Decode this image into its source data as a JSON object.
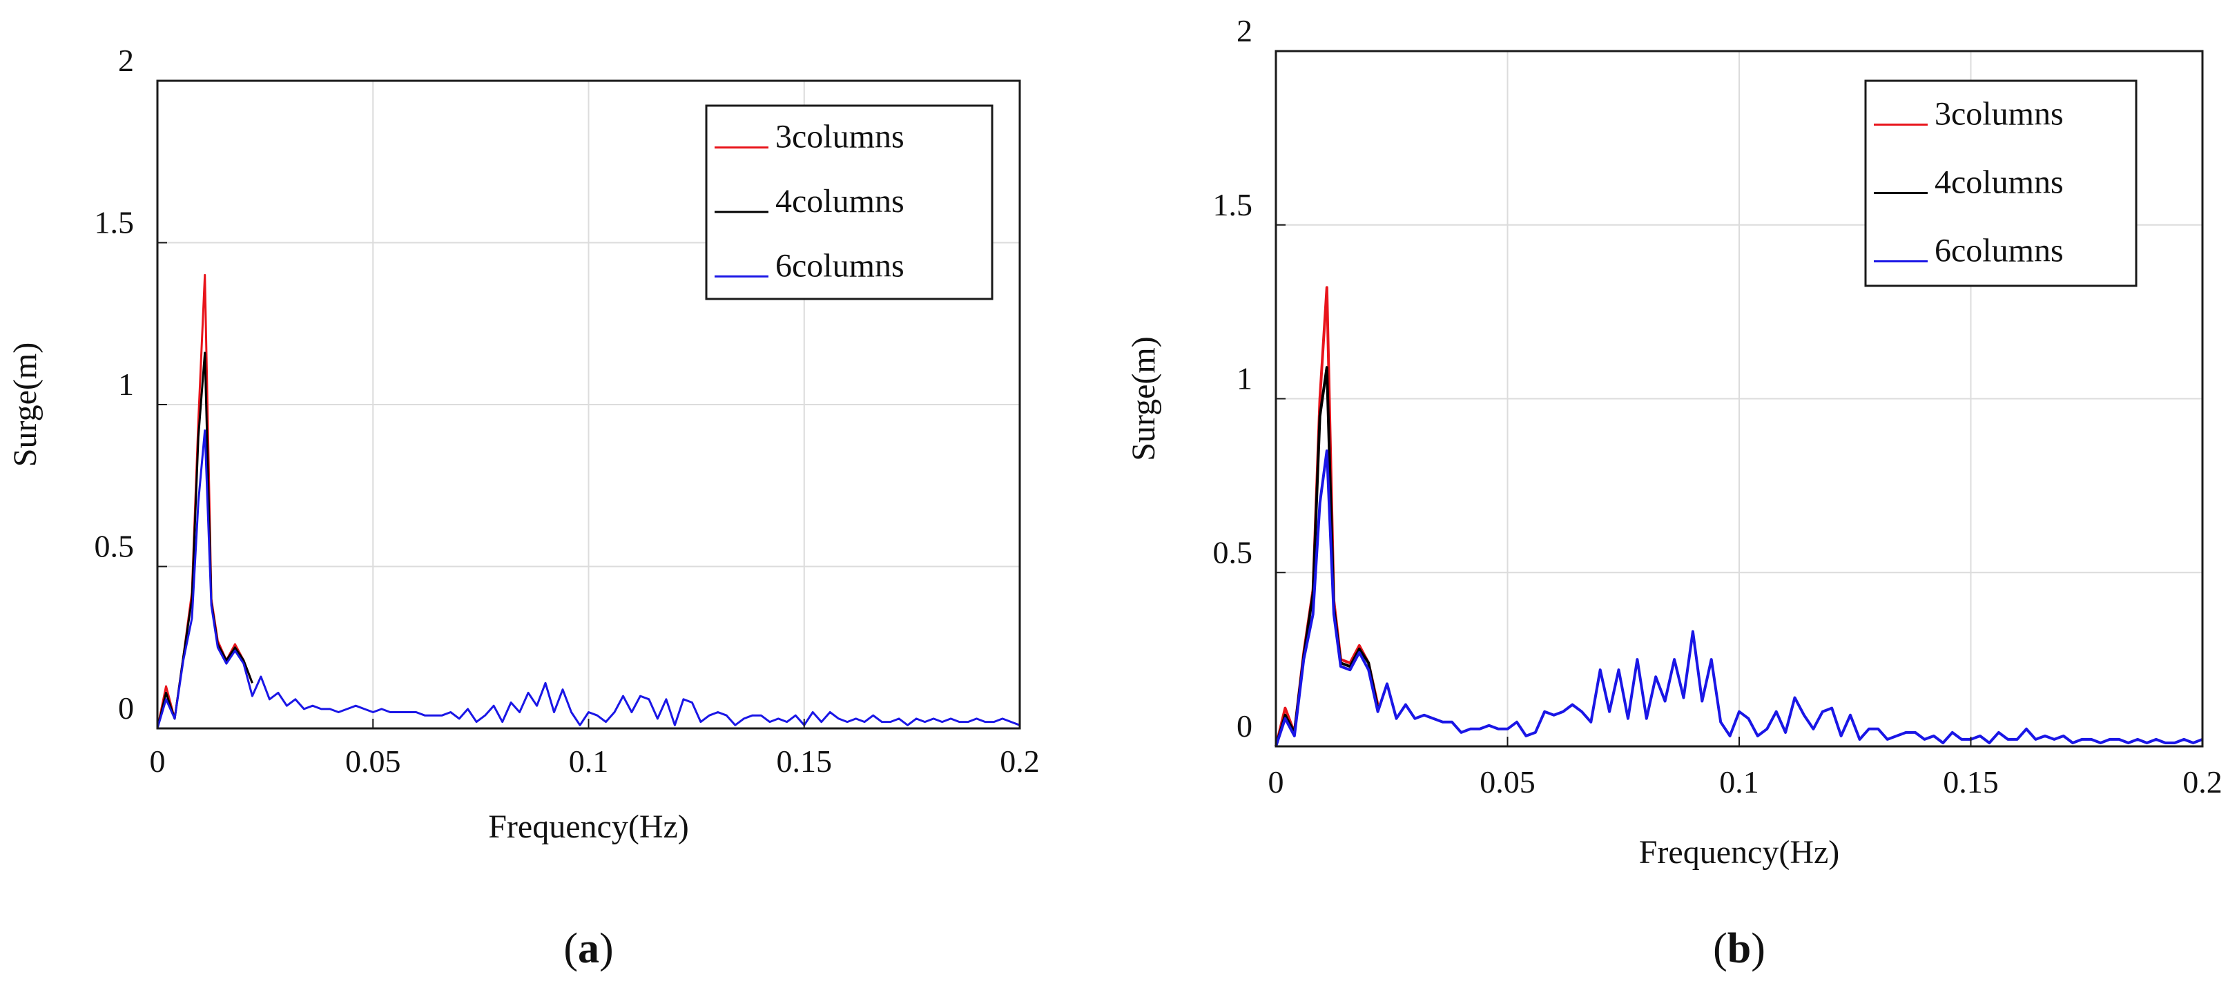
{
  "chart_data": [
    {
      "type": "line",
      "panel_label_open": "(",
      "panel_label_letter": "a",
      "panel_label_close": ")",
      "xlabel": "Frequency(Hz)",
      "ylabel": "Surge(m)",
      "xlim": [
        0,
        0.2
      ],
      "ylim": [
        0,
        2
      ],
      "xticks": [
        0,
        0.05,
        0.1,
        0.15,
        0.2
      ],
      "yticks": [
        0,
        0.5,
        1,
        1.5,
        2
      ],
      "grid": true,
      "legend_position": "top-right",
      "series": [
        {
          "name": "3columns",
          "color": "#e8141b",
          "x": [
            0,
            0.002,
            0.004,
            0.006,
            0.008,
            0.0095,
            0.011,
            0.0125,
            0.014,
            0.016,
            0.018,
            0.02,
            0.022
          ],
          "y": [
            0,
            0.13,
            0.03,
            0.22,
            0.42,
            0.95,
            1.4,
            0.4,
            0.27,
            0.21,
            0.26,
            0.21,
            0.14
          ]
        },
        {
          "name": "4columns",
          "color": "#000000",
          "x": [
            0,
            0.002,
            0.004,
            0.006,
            0.008,
            0.0095,
            0.011,
            0.0125,
            0.014,
            0.016,
            0.018,
            0.02,
            0.022
          ],
          "y": [
            0,
            0.11,
            0.03,
            0.22,
            0.4,
            0.9,
            1.16,
            0.39,
            0.26,
            0.21,
            0.25,
            0.21,
            0.14
          ]
        },
        {
          "name": "6columns",
          "color": "#1a16e6",
          "x": [
            0,
            0.002,
            0.004,
            0.006,
            0.008,
            0.0095,
            0.011,
            0.0125,
            0.014,
            0.016,
            0.018,
            0.02,
            0.022,
            0.024,
            0.026,
            0.028,
            0.03,
            0.032,
            0.034,
            0.036,
            0.038,
            0.04,
            0.042,
            0.044,
            0.046,
            0.048,
            0.05,
            0.052,
            0.054,
            0.056,
            0.058,
            0.06,
            0.062,
            0.064,
            0.066,
            0.068,
            0.07,
            0.072,
            0.074,
            0.076,
            0.078,
            0.08,
            0.082,
            0.084,
            0.086,
            0.088,
            0.09,
            0.092,
            0.094,
            0.096,
            0.098,
            0.1,
            0.102,
            0.104,
            0.106,
            0.108,
            0.11,
            0.112,
            0.114,
            0.116,
            0.118,
            0.12,
            0.122,
            0.124,
            0.126,
            0.128,
            0.13,
            0.132,
            0.134,
            0.136,
            0.138,
            0.14,
            0.142,
            0.144,
            0.146,
            0.148,
            0.15,
            0.152,
            0.154,
            0.156,
            0.158,
            0.16,
            0.162,
            0.164,
            0.166,
            0.168,
            0.17,
            0.172,
            0.174,
            0.176,
            0.178,
            0.18,
            0.182,
            0.184,
            0.186,
            0.188,
            0.19,
            0.192,
            0.194,
            0.196,
            0.198,
            0.2
          ],
          "y": [
            0,
            0.09,
            0.03,
            0.21,
            0.34,
            0.7,
            0.92,
            0.38,
            0.25,
            0.2,
            0.24,
            0.2,
            0.1,
            0.16,
            0.09,
            0.11,
            0.07,
            0.09,
            0.06,
            0.07,
            0.06,
            0.06,
            0.05,
            0.06,
            0.07,
            0.06,
            0.05,
            0.06,
            0.05,
            0.05,
            0.05,
            0.05,
            0.04,
            0.04,
            0.04,
            0.05,
            0.03,
            0.06,
            0.02,
            0.04,
            0.07,
            0.02,
            0.08,
            0.05,
            0.11,
            0.07,
            0.14,
            0.05,
            0.12,
            0.05,
            0.01,
            0.05,
            0.04,
            0.02,
            0.05,
            0.1,
            0.05,
            0.1,
            0.09,
            0.03,
            0.09,
            0.01,
            0.09,
            0.08,
            0.02,
            0.04,
            0.05,
            0.04,
            0.01,
            0.03,
            0.04,
            0.04,
            0.02,
            0.03,
            0.02,
            0.04,
            0.01,
            0.05,
            0.02,
            0.05,
            0.03,
            0.02,
            0.03,
            0.02,
            0.04,
            0.02,
            0.02,
            0.03,
            0.01,
            0.03,
            0.02,
            0.03,
            0.02,
            0.03,
            0.02,
            0.02,
            0.03,
            0.02,
            0.02,
            0.03,
            0.02,
            0.01
          ]
        }
      ]
    },
    {
      "type": "line",
      "panel_label_open": "(",
      "panel_label_letter": "b",
      "panel_label_close": ")",
      "xlabel": "Frequency(Hz)",
      "ylabel": "Surge(m)",
      "xlim": [
        0,
        0.2
      ],
      "ylim": [
        0,
        2
      ],
      "xticks": [
        0,
        0.05,
        0.1,
        0.15,
        0.2
      ],
      "yticks": [
        0,
        0.5,
        1,
        1.5,
        2
      ],
      "grid": true,
      "legend_position": "top-right",
      "series": [
        {
          "name": "3columns",
          "color": "#e8141b",
          "x": [
            0,
            0.002,
            0.004,
            0.006,
            0.008,
            0.0095,
            0.011,
            0.0125,
            0.014,
            0.016,
            0.018,
            0.02,
            0.022
          ],
          "y": [
            0,
            0.11,
            0.04,
            0.27,
            0.45,
            1.0,
            1.32,
            0.42,
            0.25,
            0.24,
            0.29,
            0.24,
            0.12
          ]
        },
        {
          "name": "4columns",
          "color": "#000000",
          "x": [
            0,
            0.002,
            0.004,
            0.006,
            0.008,
            0.0095,
            0.011,
            0.0125,
            0.014,
            0.016,
            0.018,
            0.02,
            0.022
          ],
          "y": [
            0,
            0.09,
            0.04,
            0.26,
            0.44,
            0.95,
            1.09,
            0.4,
            0.24,
            0.23,
            0.28,
            0.24,
            0.11
          ]
        },
        {
          "name": "6columns",
          "color": "#1a16e6",
          "x": [
            0,
            0.002,
            0.004,
            0.006,
            0.008,
            0.0095,
            0.011,
            0.0125,
            0.014,
            0.016,
            0.018,
            0.02,
            0.022,
            0.024,
            0.026,
            0.028,
            0.03,
            0.032,
            0.034,
            0.036,
            0.038,
            0.04,
            0.042,
            0.044,
            0.046,
            0.048,
            0.05,
            0.052,
            0.054,
            0.056,
            0.058,
            0.06,
            0.062,
            0.064,
            0.066,
            0.068,
            0.07,
            0.072,
            0.074,
            0.076,
            0.078,
            0.08,
            0.082,
            0.084,
            0.086,
            0.088,
            0.09,
            0.092,
            0.094,
            0.096,
            0.098,
            0.1,
            0.102,
            0.104,
            0.106,
            0.108,
            0.11,
            0.112,
            0.114,
            0.116,
            0.118,
            0.12,
            0.122,
            0.124,
            0.126,
            0.128,
            0.13,
            0.132,
            0.134,
            0.136,
            0.138,
            0.14,
            0.142,
            0.144,
            0.146,
            0.148,
            0.15,
            0.152,
            0.154,
            0.156,
            0.158,
            0.16,
            0.162,
            0.164,
            0.166,
            0.168,
            0.17,
            0.172,
            0.174,
            0.176,
            0.178,
            0.18,
            0.182,
            0.184,
            0.186,
            0.188,
            0.19,
            0.192,
            0.194,
            0.196,
            0.198,
            0.2
          ],
          "y": [
            0,
            0.08,
            0.03,
            0.25,
            0.38,
            0.7,
            0.85,
            0.38,
            0.23,
            0.22,
            0.27,
            0.22,
            0.1,
            0.18,
            0.08,
            0.12,
            0.08,
            0.09,
            0.08,
            0.07,
            0.07,
            0.04,
            0.05,
            0.05,
            0.06,
            0.05,
            0.05,
            0.07,
            0.03,
            0.04,
            0.1,
            0.09,
            0.1,
            0.12,
            0.1,
            0.07,
            0.22,
            0.1,
            0.22,
            0.08,
            0.25,
            0.08,
            0.2,
            0.13,
            0.25,
            0.14,
            0.33,
            0.13,
            0.25,
            0.07,
            0.03,
            0.1,
            0.08,
            0.03,
            0.05,
            0.1,
            0.04,
            0.14,
            0.09,
            0.05,
            0.1,
            0.11,
            0.03,
            0.09,
            0.02,
            0.05,
            0.05,
            0.02,
            0.03,
            0.04,
            0.04,
            0.02,
            0.03,
            0.01,
            0.04,
            0.02,
            0.02,
            0.03,
            0.01,
            0.04,
            0.02,
            0.02,
            0.05,
            0.02,
            0.03,
            0.02,
            0.03,
            0.01,
            0.02,
            0.02,
            0.01,
            0.02,
            0.02,
            0.01,
            0.02,
            0.01,
            0.02,
            0.01,
            0.01,
            0.02,
            0.01,
            0.02
          ]
        }
      ]
    }
  ]
}
